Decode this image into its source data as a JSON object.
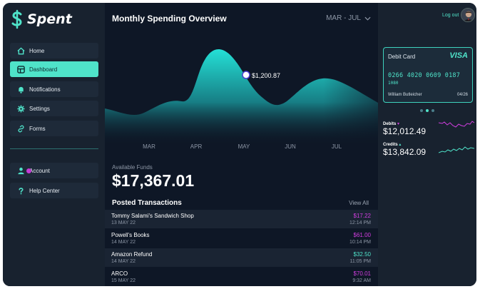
{
  "app": {
    "name": "Spent"
  },
  "sidebar": {
    "items": [
      {
        "label": "Home",
        "icon": "home-icon"
      },
      {
        "label": "Dashboard",
        "icon": "dashboard-icon",
        "active": true
      },
      {
        "label": "Notifications",
        "icon": "bell-icon"
      },
      {
        "label": "Settings",
        "icon": "gear-icon"
      },
      {
        "label": "Forms",
        "icon": "link-icon"
      }
    ],
    "bottom_items": [
      {
        "label": "Account",
        "icon": "user-icon"
      },
      {
        "label": "Help Center",
        "icon": "question-icon"
      }
    ]
  },
  "main": {
    "title": "Monthly Spending Overview",
    "range": "MAR - JUL",
    "chart": {
      "months": [
        "MAR",
        "APR",
        "MAY",
        "JUN",
        "JUL"
      ],
      "highlight_label": "$1,200.87"
    },
    "funds": {
      "label": "Available Funds",
      "value": "$17,367.01"
    },
    "transactions": {
      "title": "Posted Transactions",
      "view_all": "View All",
      "rows": [
        {
          "name": "Tommy Salami's Sandwich Shop",
          "date": "13 MAY 22",
          "amount": "$17.22",
          "time": "12:14 PM",
          "type": "debit"
        },
        {
          "name": "Powell's Books",
          "date": "14 MAY 22",
          "amount": "$61.00",
          "time": "10:14 PM",
          "type": "debit"
        },
        {
          "name": "Amazon Refund",
          "date": "14 MAY 22",
          "amount": "$32.50",
          "time": "11:05 PM",
          "type": "credit"
        },
        {
          "name": "ARCO",
          "date": "15 MAY 22",
          "amount": "$70.01",
          "time": "9:32 AM",
          "type": "debit"
        }
      ]
    }
  },
  "right": {
    "logout": "Log out",
    "card": {
      "type": "Debit Card",
      "brand": "VISA",
      "number": "0266 4020 0609 0187",
      "number2": "1080",
      "holder": "William Butleicher",
      "expiry": "04/26"
    },
    "debits": {
      "label": "Debits",
      "value": "$12,012.49"
    },
    "credits": {
      "label": "Credits",
      "value": "$13,842.09"
    }
  },
  "colors": {
    "accent": "#4fe3c9",
    "debit": "#d23ee0",
    "credit": "#4fe3c9",
    "background": "#0e1726",
    "sidebar": "#18222f"
  }
}
